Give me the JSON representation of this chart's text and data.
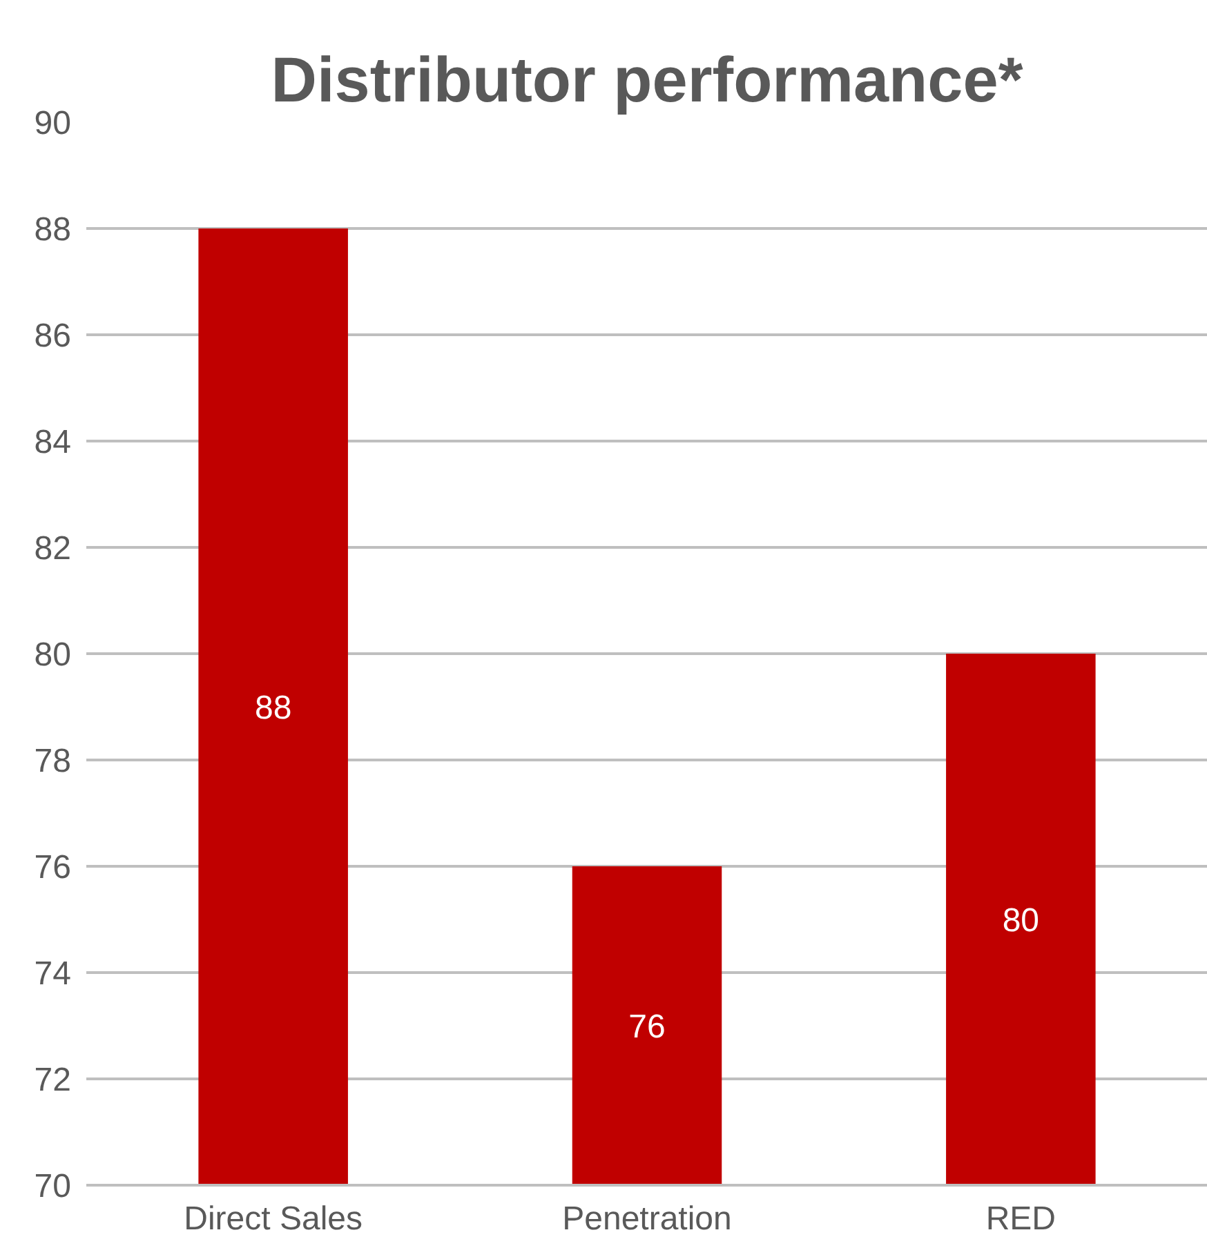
{
  "chart_data": {
    "type": "bar",
    "title": "Distributor performance*",
    "categories": [
      "Direct Sales",
      "Penetration",
      "RED"
    ],
    "values": [
      88,
      76,
      80
    ],
    "color": "#c00000",
    "ylim": [
      70,
      90
    ],
    "yticks": [
      70,
      72,
      74,
      76,
      78,
      80,
      82,
      84,
      86,
      88,
      90
    ],
    "grid": "y",
    "data_labels": true
  }
}
